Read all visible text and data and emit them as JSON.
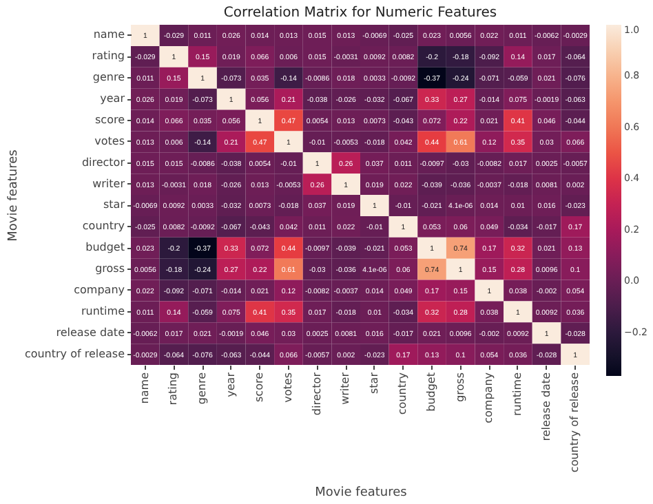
{
  "chart_data": {
    "type": "heatmap",
    "title": "Correlation Matrix for Numeric Features",
    "xlabel": "Movie features",
    "ylabel": "Movie features",
    "categories": [
      "name",
      "rating",
      "genre",
      "year",
      "score",
      "votes",
      "director",
      "writer",
      "star",
      "country",
      "budget",
      "gross",
      "company",
      "runtime",
      "release date",
      "country of release"
    ],
    "y_categories": [
      "name",
      "rating",
      "genre",
      "year",
      "score",
      "votes",
      "director",
      "writer",
      "star",
      "country",
      "budget",
      "gross",
      "company",
      "runtime",
      "release date",
      "country of release"
    ],
    "cells": [
      [
        1,
        -0.029,
        0.011,
        0.026,
        0.014,
        0.013,
        0.015,
        0.013,
        -0.0069,
        -0.025,
        0.023,
        0.0056,
        0.022,
        0.011,
        -0.0062,
        -0.0029
      ],
      [
        -0.029,
        1,
        0.15,
        0.019,
        0.066,
        0.006,
        0.015,
        -0.0031,
        0.0092,
        0.0082,
        -0.2,
        -0.18,
        -0.092,
        0.14,
        0.017,
        -0.064
      ],
      [
        0.011,
        0.15,
        1,
        -0.073,
        0.035,
        -0.14,
        -0.0086,
        0.018,
        0.0033,
        -0.0092,
        -0.37,
        -0.24,
        -0.071,
        -0.059,
        0.021,
        -0.076
      ],
      [
        0.026,
        0.019,
        -0.073,
        1,
        0.056,
        0.21,
        -0.038,
        -0.026,
        -0.032,
        -0.067,
        0.33,
        0.27,
        -0.014,
        0.075,
        -0.0019,
        -0.063
      ],
      [
        0.014,
        0.066,
        0.035,
        0.056,
        1,
        0.47,
        0.0054,
        0.013,
        0.0073,
        -0.043,
        0.072,
        0.22,
        0.021,
        0.41,
        0.046,
        -0.044
      ],
      [
        0.013,
        0.006,
        -0.14,
        0.21,
        0.47,
        1,
        -0.01,
        -0.0053,
        -0.018,
        0.042,
        0.44,
        0.61,
        0.12,
        0.35,
        0.03,
        0.066
      ],
      [
        0.015,
        0.015,
        -0.0086,
        -0.038,
        0.0054,
        -0.01,
        1,
        0.26,
        0.037,
        0.011,
        -0.0097,
        -0.03,
        -0.0082,
        0.017,
        0.0025,
        -0.0057
      ],
      [
        0.013,
        -0.0031,
        0.018,
        -0.026,
        0.013,
        -0.0053,
        0.26,
        1,
        0.019,
        0.022,
        -0.039,
        -0.036,
        -0.0037,
        -0.018,
        0.0081,
        0.002
      ],
      [
        -0.0069,
        0.0092,
        0.0033,
        -0.032,
        0.0073,
        -0.018,
        0.037,
        0.019,
        1,
        -0.01,
        -0.021,
        4.1e-06,
        0.014,
        0.01,
        0.016,
        -0.023
      ],
      [
        -0.025,
        0.0082,
        -0.0092,
        -0.067,
        -0.043,
        0.042,
        0.011,
        0.022,
        -0.01,
        1,
        0.053,
        0.06,
        0.049,
        -0.034,
        -0.017,
        0.17
      ],
      [
        0.023,
        -0.2,
        -0.37,
        0.33,
        0.072,
        0.44,
        -0.0097,
        -0.039,
        -0.021,
        0.053,
        1,
        0.74,
        0.17,
        0.32,
        0.021,
        0.13
      ],
      [
        0.0056,
        -0.18,
        -0.24,
        0.27,
        0.22,
        0.61,
        -0.03,
        -0.036,
        4.1e-06,
        0.06,
        0.74,
        1,
        0.15,
        0.28,
        0.0096,
        0.1
      ],
      [
        0.022,
        -0.092,
        -0.071,
        -0.014,
        0.021,
        0.12,
        -0.0082,
        -0.0037,
        0.014,
        0.049,
        0.17,
        0.15,
        1,
        0.038,
        -0.002,
        0.054
      ],
      [
        0.011,
        0.14,
        -0.059,
        0.075,
        0.41,
        0.35,
        0.017,
        -0.018,
        0.01,
        -0.034,
        0.32,
        0.28,
        0.038,
        1,
        0.0092,
        0.036
      ],
      [
        -0.0062,
        0.017,
        0.021,
        -0.0019,
        0.046,
        0.03,
        0.0025,
        0.0081,
        0.016,
        -0.017,
        0.021,
        0.0096,
        -0.002,
        0.0092,
        1,
        -0.028
      ],
      [
        -0.0029,
        -0.064,
        -0.076,
        -0.063,
        -0.044,
        0.066,
        -0.0057,
        0.002,
        -0.023,
        0.17,
        0.13,
        0.1,
        0.054,
        0.036,
        -0.028,
        1
      ]
    ],
    "data_labels": true,
    "clim": [
      -0.37,
      1
    ],
    "cticks": [
      {
        "value": -0.2,
        "label": "−0.2"
      },
      {
        "value": 0,
        "label": "0.0"
      },
      {
        "value": 0.2,
        "label": "0.2"
      },
      {
        "value": 0.4,
        "label": "0.4"
      },
      {
        "value": 0.6,
        "label": "0.6"
      },
      {
        "value": 0.8,
        "label": "0.8"
      },
      {
        "value": 1,
        "label": "1.0"
      }
    ]
  }
}
